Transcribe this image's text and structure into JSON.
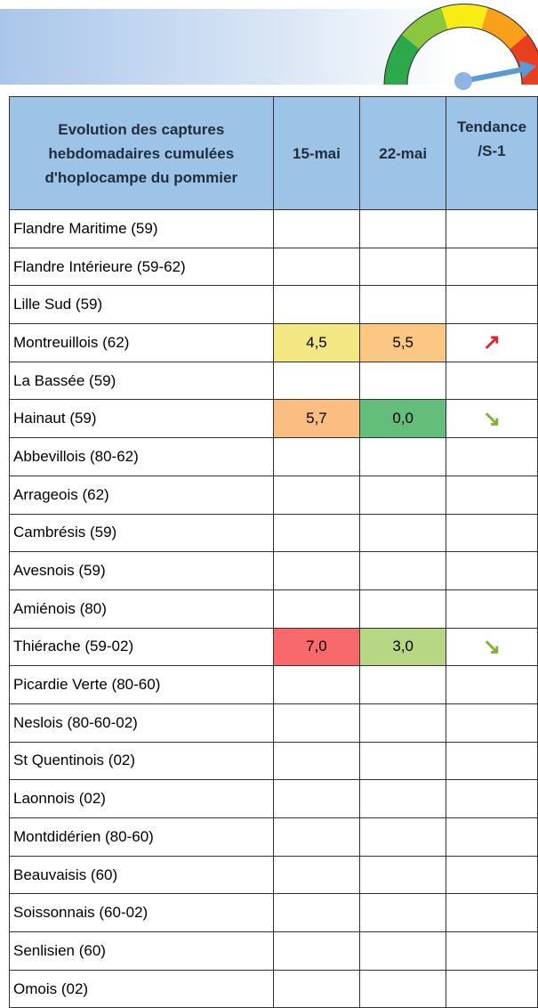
{
  "table": {
    "header": [
      "Evolution des captures hebdomadaires cumulées d'hoplocampe du pommier",
      "15-mai",
      "22-mai",
      "Tendance /S-1"
    ],
    "rows": [
      {
        "name": "Flandre Maritime (59)",
        "values": [
          null,
          null
        ],
        "trend": null
      },
      {
        "name": "Flandre Intérieure (59-62)",
        "values": [
          null,
          null
        ],
        "trend": null
      },
      {
        "name": "Lille Sud (59)",
        "values": [
          null,
          null
        ],
        "trend": null
      },
      {
        "name": "Montreuillois (62)",
        "values": [
          "4,5",
          "5,5"
        ],
        "fills": [
          "#f3e784",
          "#fcc783"
        ],
        "trend": "↗",
        "trend_color": "#e8202a"
      },
      {
        "name": "La Bassée (59)",
        "values": [
          null,
          null
        ],
        "trend": null
      },
      {
        "name": "Hainaut (59)",
        "values": [
          "5,7",
          "0,0"
        ],
        "fills": [
          "#fbbd80",
          "#63be7b"
        ],
        "trend": "↘",
        "trend_color": "#7ab32e"
      },
      {
        "name": "Abbevillois (80-62)",
        "values": [
          null,
          null
        ],
        "trend": null
      },
      {
        "name": "Arrageois (62)",
        "values": [
          null,
          null
        ],
        "trend": null
      },
      {
        "name": "Cambrésis (59)",
        "values": [
          null,
          null
        ],
        "trend": null
      },
      {
        "name": "Avesnois (59)",
        "values": [
          null,
          null
        ],
        "trend": null
      },
      {
        "name": "Amiénois (80)",
        "values": [
          null,
          null
        ],
        "trend": null
      },
      {
        "name": "Thiérache (59-02)",
        "values": [
          "7,0",
          "3,0"
        ],
        "fills": [
          "#f8696b",
          "#b7d785"
        ],
        "trend": "↘",
        "trend_color": "#7ab32e"
      },
      {
        "name": "Picardie Verte (80-60)",
        "values": [
          null,
          null
        ],
        "trend": null
      },
      {
        "name": "Neslois (80-60-02)",
        "values": [
          null,
          null
        ],
        "trend": null
      },
      {
        "name": "St Quentinois (02)",
        "values": [
          null,
          null
        ],
        "trend": null
      },
      {
        "name": "Laonnois (02)",
        "values": [
          null,
          null
        ],
        "trend": null
      },
      {
        "name": "Montdidérien (80-60)",
        "values": [
          null,
          null
        ],
        "trend": null
      },
      {
        "name": "Beauvaisis (60)",
        "values": [
          null,
          null
        ],
        "trend": null
      },
      {
        "name": "Soissonnais (60-02)",
        "values": [
          null,
          null
        ],
        "trend": null
      },
      {
        "name": "Senlisien (60)",
        "values": [
          null,
          null
        ],
        "trend": null
      },
      {
        "name": "Omois (02)",
        "values": [
          null,
          null
        ],
        "trend": null
      }
    ]
  }
}
